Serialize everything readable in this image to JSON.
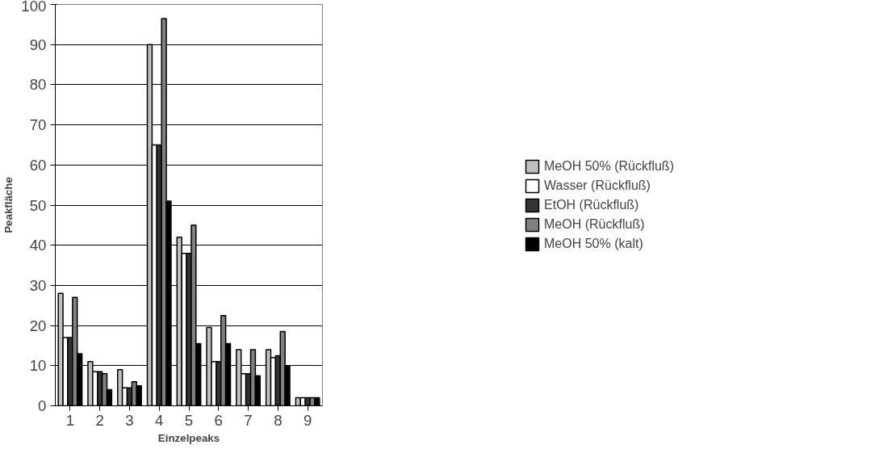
{
  "chart_data": {
    "type": "bar",
    "xlabel": "Einzelpeaks",
    "ylabel": "Peakfläche",
    "categories": [
      "1",
      "2",
      "3",
      "4",
      "5",
      "6",
      "7",
      "8",
      "9"
    ],
    "series": [
      {
        "name": "MeOH 50% (Rückfluß)",
        "color": "#c0c0c0",
        "values": [
          28,
          11,
          9,
          90,
          42,
          19.5,
          14,
          14,
          2
        ]
      },
      {
        "name": "Wasser (Rückfluß)",
        "color": "#ffffff",
        "values": [
          17,
          8.5,
          4.5,
          65,
          38,
          11,
          8,
          12,
          2
        ]
      },
      {
        "name": "EtOH (Rückfluß)",
        "color": "#333333",
        "values": [
          17,
          8.5,
          4.5,
          65,
          38,
          11,
          8,
          12.5,
          2
        ]
      },
      {
        "name": "MeOH (Rückfluß)",
        "color": "#808080",
        "values": [
          27,
          8,
          6,
          96.5,
          45,
          22.5,
          14,
          18.5,
          2
        ]
      },
      {
        "name": "MeOH 50% (kalt)",
        "color": "#000000",
        "values": [
          13,
          4,
          5,
          51,
          15.5,
          15.5,
          7.5,
          10,
          2
        ]
      }
    ],
    "ylim": [
      0,
      100
    ],
    "yticks": [
      0,
      10,
      20,
      30,
      40,
      50,
      60,
      70,
      80,
      90,
      100
    ],
    "grid": "y",
    "legend": "right"
  }
}
